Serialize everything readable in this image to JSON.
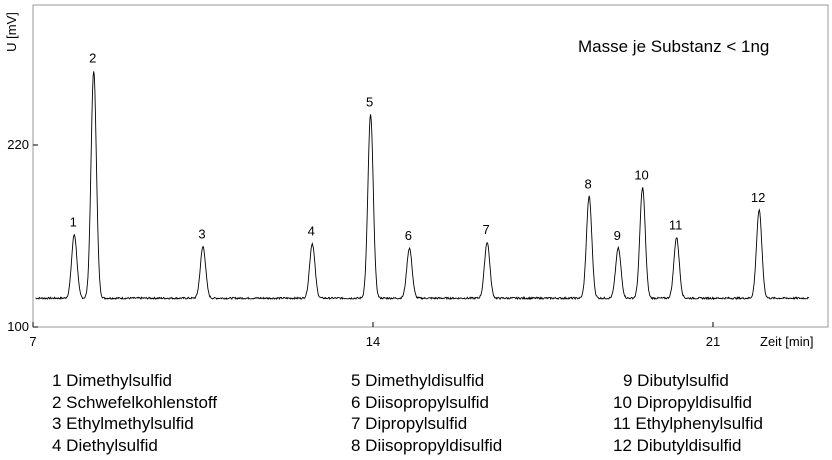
{
  "chart_data": {
    "type": "line",
    "annotation": "Masse je Substanz < 1ng",
    "xlabel": "Zeit [min]",
    "ylabel": "U [mV]",
    "xlim": [
      7,
      23
    ],
    "ylim": [
      100,
      300
    ],
    "x_ticks": [
      "7",
      "14",
      "21"
    ],
    "y_ticks": [
      "100",
      "220"
    ],
    "grid": false,
    "baseline": 119,
    "peaks": [
      {
        "label": "1",
        "x": 7.85,
        "y": 161
      },
      {
        "label": "2",
        "x": 8.25,
        "y": 269
      },
      {
        "label": "3",
        "x": 10.5,
        "y": 153
      },
      {
        "label": "4",
        "x": 12.75,
        "y": 155
      },
      {
        "label": "5",
        "x": 13.95,
        "y": 240
      },
      {
        "label": "6",
        "x": 14.75,
        "y": 152
      },
      {
        "label": "7",
        "x": 16.35,
        "y": 156
      },
      {
        "label": "8",
        "x": 18.45,
        "y": 186
      },
      {
        "label": "9",
        "x": 19.05,
        "y": 152
      },
      {
        "label": "10",
        "x": 19.55,
        "y": 192
      },
      {
        "label": "11",
        "x": 20.25,
        "y": 159
      },
      {
        "label": "12",
        "x": 21.95,
        "y": 177
      }
    ]
  },
  "legend": {
    "columns": [
      [
        "1 Dimethylsulfid",
        "2 Schwefelkohlenstoff",
        "3 Ethylmethylsulfid",
        "4 Diethylsulfid"
      ],
      [
        "5 Dimethyldisulfid",
        "6 Diisopropylsulfid",
        "7 Dipropylsulfid",
        "8 Diisopropyldisulfid"
      ],
      [
        "9 Dibutylsulfid",
        "10 Dipropyldisulfid",
        "11 Ethylphenylsulfid",
        "12 Dibutyldisulfid"
      ]
    ]
  },
  "colors": {
    "trace": "#000000",
    "axis": "#000000",
    "plot_border": "#9a9a9a"
  }
}
